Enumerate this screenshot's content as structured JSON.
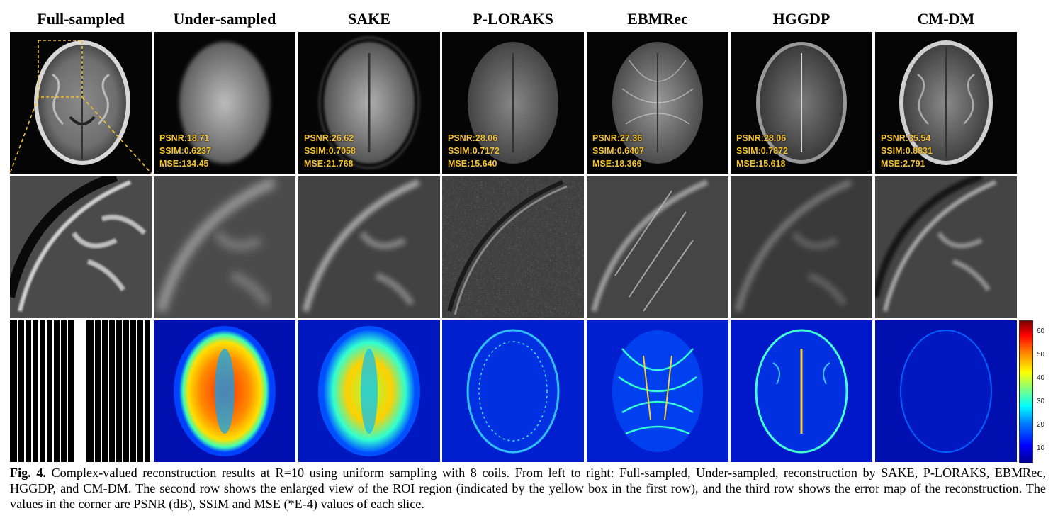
{
  "columns": [
    {
      "title": "Full-sampled",
      "metrics": null
    },
    {
      "title": "Under-sampled",
      "metrics": {
        "psnr": "PSNR:18.71",
        "ssim": "SSIM:0.6237",
        "mse": "MSE:134.45"
      }
    },
    {
      "title": "SAKE",
      "metrics": {
        "psnr": "PSNR:26.62",
        "ssim": "SSIM:0.7058",
        "mse": "MSE:21.768"
      }
    },
    {
      "title": "P-LORAKS",
      "metrics": {
        "psnr": "PSNR:28.06",
        "ssim": "SSIM:0.7172",
        "mse": "MSE:15.640"
      }
    },
    {
      "title": "EBMRec",
      "metrics": {
        "psnr": "PSNR:27.36",
        "ssim": "SSIM:0.6407",
        "mse": "MSE:18.366"
      }
    },
    {
      "title": "HGGDP",
      "metrics": {
        "psnr": "PSNR:28.06",
        "ssim": "SSIM:0.7872",
        "mse": "MSE:15.618"
      }
    },
    {
      "title": "CM-DM",
      "metrics": {
        "psnr": "PSNR:35.54",
        "ssim": "SSIM:0.8831",
        "mse": "MSE:2.791"
      }
    }
  ],
  "colorbar": {
    "ticks": [
      "60",
      "50",
      "40",
      "30",
      "20",
      "10"
    ]
  },
  "colors": {
    "roi_box": "#f2c233",
    "metric_text": "#f2c233"
  },
  "caption": {
    "label": "Fig. 4.",
    "text": " Complex-valued reconstruction results at R=10 using uniform sampling with 8 coils. From left to right: Full-sampled, Under-sampled, reconstruction by SAKE, P-LORAKS, EBMRec, HGGDP, and CM-DM. The second row shows the enlarged view of the ROI region (indicated by the yellow box in the first row), and the third row shows the error map of the reconstruction. The values in the corner are PSNR (dB), SSIM and MSE (*E-4) values of each slice."
  }
}
